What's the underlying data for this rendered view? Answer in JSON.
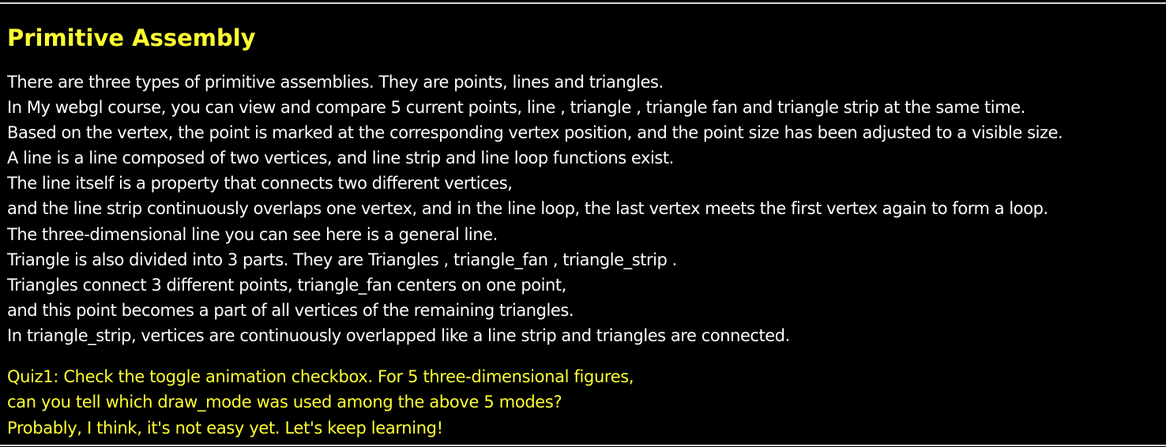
{
  "title": "Primitive Assembly",
  "colors": {
    "background": "#000000",
    "heading": "#ffff33",
    "body_text": "#ffffff",
    "quiz_text": "#ffff33",
    "rule": "#d8d8d8"
  },
  "body_lines": [
    "There are three types of primitive assemblies. They are points, lines and triangles.",
    "In My webgl course, you can view and compare 5 current points, line , triangle , triangle fan and triangle strip at the same time.",
    "Based on the vertex, the point is marked at the corresponding vertex position, and the point size has been adjusted to a visible size.",
    "A line is a line composed of two vertices, and line strip and line loop functions exist.",
    "The line itself is a property that connects two different vertices,",
    "and the line strip continuously overlaps one vertex, and in the line loop, the last vertex meets the first vertex again to form a loop.",
    "The three-dimensional line you can see here is a general line.",
    "Triangle is also divided into 3 parts. They are Triangles , triangle_fan , triangle_strip .",
    "Triangles connect 3 different points, triangle_fan centers on one point,",
    "and this point becomes a part of all vertices of the remaining triangles.",
    "In triangle_strip, vertices are continuously overlapped like a line strip and triangles are connected."
  ],
  "quiz_lines": [
    "Quiz1: Check the toggle animation checkbox. For 5 three-dimensional figures,",
    "can you tell which draw_mode was used among the above 5 modes?",
    "Probably, I think, it's not easy yet. Let's keep learning!"
  ]
}
